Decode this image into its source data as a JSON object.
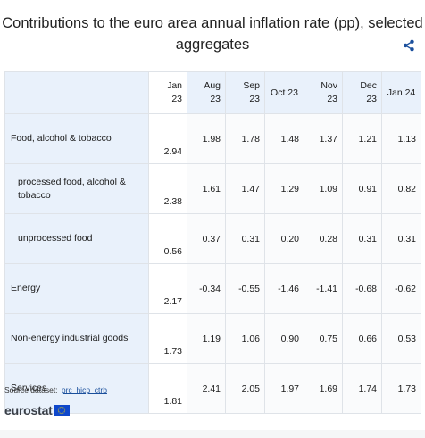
{
  "title": "Contributions to the euro area annual inflation rate (pp), selected aggregates",
  "share_icon": "share-icon",
  "columns": [
    {
      "line1": "Jan",
      "line2": "23"
    },
    {
      "line1": "Aug",
      "line2": "23"
    },
    {
      "line1": "Sep",
      "line2": "23"
    },
    {
      "line1": "Oct 23",
      "line2": ""
    },
    {
      "line1": "Nov",
      "line2": "23"
    },
    {
      "line1": "Dec",
      "line2": "23"
    },
    {
      "line1": "Jan 24",
      "line2": ""
    }
  ],
  "rows": [
    {
      "label": "Food, alcohol & tobacco",
      "sub": false,
      "values": [
        "2.94",
        "1.98",
        "1.78",
        "1.48",
        "1.37",
        "1.21",
        "1.13"
      ]
    },
    {
      "label": "processed food, alcohol & tobacco",
      "sub": true,
      "values": [
        "2.38",
        "1.61",
        "1.47",
        "1.29",
        "1.09",
        "0.91",
        "0.82"
      ]
    },
    {
      "label": "unprocessed food",
      "sub": true,
      "values": [
        "0.56",
        "0.37",
        "0.31",
        "0.20",
        "0.28",
        "0.31",
        "0.31"
      ]
    },
    {
      "label": "Energy",
      "sub": false,
      "values": [
        "2.17",
        "-0.34",
        "-0.55",
        "-1.46",
        "-1.41",
        "-0.68",
        "-0.62"
      ]
    },
    {
      "label": "Non-energy industrial goods",
      "sub": false,
      "values": [
        "1.73",
        "1.19",
        "1.06",
        "0.90",
        "0.75",
        "0.66",
        "0.53"
      ]
    },
    {
      "label": "Services",
      "sub": false,
      "values": [
        "1.81",
        "2.41",
        "2.05",
        "1.97",
        "1.69",
        "1.74",
        "1.73"
      ]
    }
  ],
  "source": {
    "label": "Source dataset:",
    "link": "prc_hicp_ctrb"
  },
  "logo": {
    "text": "eurostat",
    "flag_color": "#0e47cb",
    "star_color": "#ffdd00"
  },
  "colors": {
    "header_bg": "#e9f1fb",
    "border": "#dfe3e8",
    "link": "#1a4f9c"
  }
}
